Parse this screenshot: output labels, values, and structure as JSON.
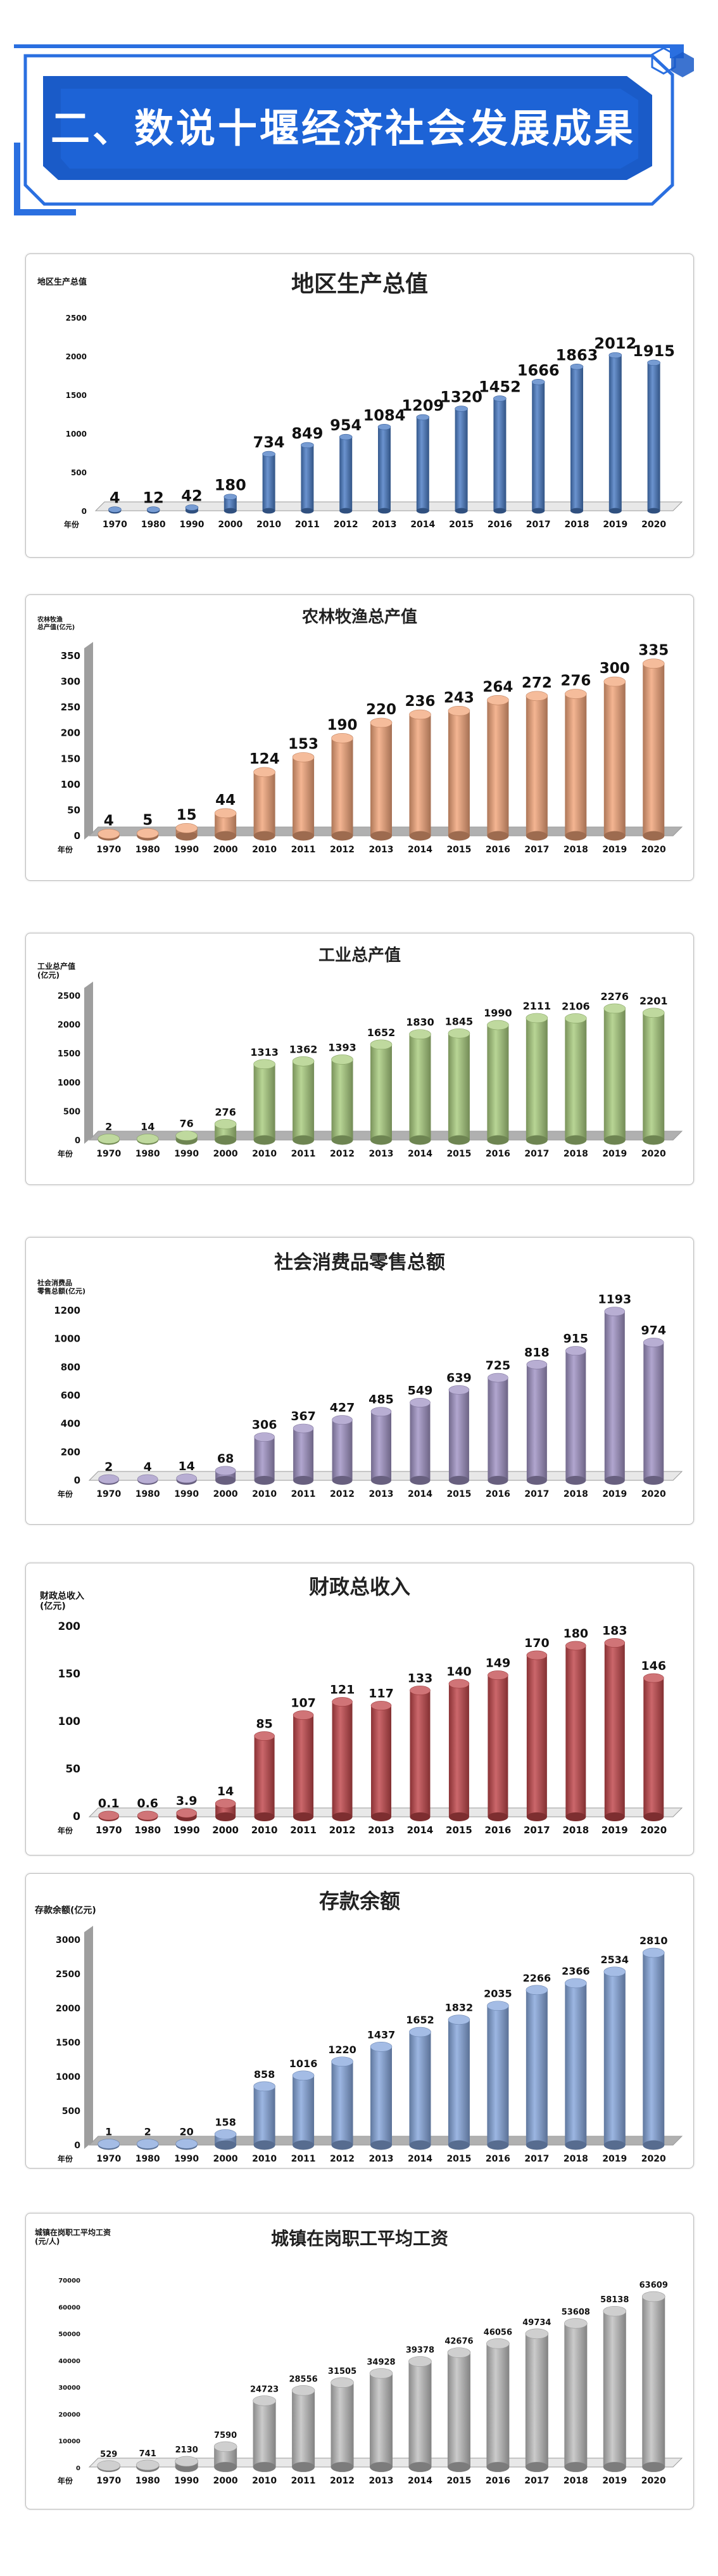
{
  "page": {
    "title": "二、数说十堰经济社会发展成果",
    "colors": {
      "banner": "#1a5bc8",
      "banner_dark": "#0d3a94",
      "frame": "#2a6fe0"
    }
  },
  "chart_data": [
    {
      "type": "bar",
      "title": "地区生产总值",
      "ylabel": "地区生产总值",
      "xlabel": "年份",
      "categories": [
        "1970",
        "1980",
        "1990",
        "2000",
        "2010",
        "2011",
        "2012",
        "2013",
        "2014",
        "2015",
        "2016",
        "2017",
        "2018",
        "2019",
        "2020"
      ],
      "values": [
        4,
        12,
        42,
        180,
        734,
        849,
        954,
        1084,
        1209,
        1320,
        1452,
        1666,
        1863,
        2012,
        1915
      ],
      "ylim": [
        0,
        2500
      ],
      "yticks": [
        0,
        500,
        1000,
        1500,
        2000,
        2500
      ],
      "color": "#4a7bc4",
      "legend": "none"
    },
    {
      "type": "bar",
      "title": "农林牧渔总产值",
      "ylabel": "农林牧渔\n总产值(亿元)",
      "xlabel": "年份",
      "categories": [
        "1970",
        "1980",
        "1990",
        "2000",
        "2010",
        "2011",
        "2012",
        "2013",
        "2014",
        "2015",
        "2016",
        "2017",
        "2018",
        "2019",
        "2020"
      ],
      "values": [
        4,
        5,
        15,
        44,
        124,
        153,
        190,
        220,
        236,
        243,
        264,
        272,
        276,
        300,
        335
      ],
      "ylim": [
        0,
        350
      ],
      "yticks": [
        0,
        50,
        100,
        150,
        200,
        250,
        300,
        350
      ],
      "color": "#f2a57a",
      "legend": "none"
    },
    {
      "type": "bar",
      "title": "工业总产值",
      "ylabel": "工业总产值\n(亿元)",
      "xlabel": "年份",
      "categories": [
        "1970",
        "1980",
        "1990",
        "2000",
        "2010",
        "2011",
        "2012",
        "2013",
        "2014",
        "2015",
        "2016",
        "2017",
        "2018",
        "2019",
        "2020"
      ],
      "values": [
        2,
        14,
        76,
        276,
        1313,
        1362,
        1393,
        1652,
        1830,
        1845,
        1990,
        2111,
        2106,
        2276,
        2201
      ],
      "ylim": [
        0,
        2500
      ],
      "yticks": [
        0,
        500,
        1000,
        1500,
        2000,
        2500
      ],
      "color": "#a9cc7e",
      "legend": "none"
    },
    {
      "type": "bar",
      "title": "社会消费品零售总额",
      "ylabel": "社会消费品\n零售总额(亿元)",
      "xlabel": "年份",
      "categories": [
        "1970",
        "1980",
        "1990",
        "2000",
        "2010",
        "2011",
        "2012",
        "2013",
        "2014",
        "2015",
        "2016",
        "2017",
        "2018",
        "2019",
        "2020"
      ],
      "values": [
        2,
        4,
        14,
        68,
        306,
        367,
        427,
        485,
        549,
        639,
        725,
        818,
        915,
        1193,
        974
      ],
      "ylim": [
        0,
        1200
      ],
      "yticks": [
        0,
        200,
        400,
        600,
        800,
        1000,
        1200
      ],
      "color": "#a093c4",
      "legend": "none"
    },
    {
      "type": "bar",
      "title": "财政总收入",
      "ylabel": "财政总收入\n(亿元)",
      "xlabel": "年份",
      "categories": [
        "1970",
        "1980",
        "1990",
        "2000",
        "2010",
        "2011",
        "2012",
        "2013",
        "2014",
        "2015",
        "2016",
        "2017",
        "2018",
        "2019",
        "2020"
      ],
      "values": [
        0.1,
        0.6,
        3.9,
        14,
        85,
        107,
        121,
        117,
        133,
        140,
        149,
        170,
        180,
        183,
        146
      ],
      "ylim": [
        0,
        200
      ],
      "yticks": [
        0,
        50,
        100,
        150,
        200
      ],
      "color": "#c0464a",
      "legend": "none"
    },
    {
      "type": "bar",
      "title": "存款余额",
      "ylabel": "存款余额(亿元)",
      "xlabel": "年份",
      "categories": [
        "1970",
        "1980",
        "1990",
        "2000",
        "2010",
        "2011",
        "2012",
        "2013",
        "2014",
        "2015",
        "2016",
        "2017",
        "2018",
        "2019",
        "2020"
      ],
      "values": [
        1,
        2,
        20,
        158,
        858,
        1016,
        1220,
        1437,
        1652,
        1832,
        2035,
        2266,
        2366,
        2534,
        2810
      ],
      "ylim": [
        0,
        3000
      ],
      "yticks": [
        0,
        500,
        1000,
        1500,
        2000,
        2500,
        3000
      ],
      "color": "#86a6dc",
      "legend": "none"
    },
    {
      "type": "bar",
      "title": "城镇在岗职工平均工资",
      "ylabel": "城镇在岗职工平均工资\n(元/人)",
      "xlabel": "年份",
      "categories": [
        "1970",
        "1980",
        "1990",
        "2000",
        "2010",
        "2011",
        "2012",
        "2013",
        "2014",
        "2015",
        "2016",
        "2017",
        "2018",
        "2019",
        "2020"
      ],
      "values": [
        529,
        741,
        2130,
        7590,
        24723,
        28556,
        31505,
        34928,
        39378,
        42676,
        46056,
        49734,
        53608,
        58138,
        63609
      ],
      "ylim": [
        0,
        70000
      ],
      "yticks": [
        0,
        10000,
        20000,
        30000,
        40000,
        50000,
        60000,
        70000
      ],
      "color": "#bfbfbf",
      "legend": "none"
    }
  ]
}
